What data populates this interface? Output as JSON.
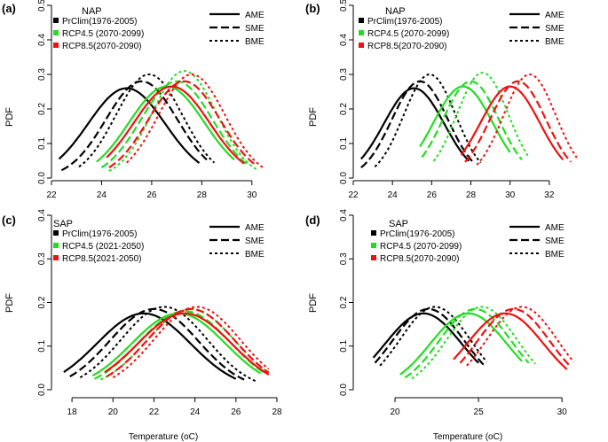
{
  "figure": {
    "xlabel": "Temperature (oC)",
    "ylabel": "PDF"
  },
  "legend_models": [
    {
      "label": "AME",
      "dash": "solid"
    },
    {
      "label": "SME",
      "dash": "longdash"
    },
    {
      "label": "BME",
      "dash": "dotted"
    }
  ],
  "colors": {
    "PrClim": "#000000",
    "RCP4.5": "#22dd22",
    "RCP8.5": "#ee1111"
  },
  "chart_data": [
    {
      "panel": "(a)",
      "region": "NAP",
      "type": "line",
      "xlim": [
        22,
        31
      ],
      "ylim": [
        0,
        0.5
      ],
      "xticks": [
        22,
        24,
        26,
        28,
        30
      ],
      "yticks": [
        0.0,
        0.1,
        0.2,
        0.3,
        0.4,
        0.5
      ],
      "legend_series": [
        "PrClim(1976-2005)",
        "RCP4.5 (2070-2099)",
        "RCP8.5(2070-2090)"
      ],
      "series": [
        {
          "group": "PrClim",
          "model": "AME",
          "mean": 25.0,
          "peak": 0.26,
          "xrange": [
            22.3,
            27.9
          ]
        },
        {
          "group": "PrClim",
          "model": "SME",
          "mean": 25.6,
          "peak": 0.28,
          "xrange": [
            22.4,
            28.2
          ]
        },
        {
          "group": "PrClim",
          "model": "BME",
          "mean": 25.9,
          "peak": 0.3,
          "xrange": [
            23.1,
            28.5
          ]
        },
        {
          "group": "RCP4.5",
          "model": "AME",
          "mean": 26.6,
          "peak": 0.265,
          "xrange": [
            23.8,
            29.3
          ]
        },
        {
          "group": "RCP4.5",
          "model": "SME",
          "mean": 27.0,
          "peak": 0.28,
          "xrange": [
            24.0,
            29.9
          ]
        },
        {
          "group": "RCP4.5",
          "model": "BME",
          "mean": 27.3,
          "peak": 0.31,
          "xrange": [
            24.3,
            30.2
          ]
        },
        {
          "group": "RCP8.5",
          "model": "AME",
          "mean": 26.8,
          "peak": 0.265,
          "xrange": [
            24.2,
            29.7
          ]
        },
        {
          "group": "RCP8.5",
          "model": "SME",
          "mean": 27.3,
          "peak": 0.28,
          "xrange": [
            24.3,
            30.1
          ]
        },
        {
          "group": "RCP8.5",
          "model": "BME",
          "mean": 27.6,
          "peak": 0.3,
          "xrange": [
            25.0,
            30.5
          ]
        }
      ]
    },
    {
      "panel": "(b)",
      "region": "NAP",
      "type": "line",
      "xlim": [
        22,
        33.5
      ],
      "ylim": [
        0,
        0.5
      ],
      "xticks": [
        22,
        24,
        26,
        28,
        30,
        32
      ],
      "yticks": [
        0.0,
        0.1,
        0.2,
        0.3,
        0.4,
        0.5
      ],
      "legend_series": [
        "PrClim(1976-2005)",
        "RCP4.5 (2070-2099)",
        "RCP8.5(2070-2090)"
      ],
      "series": [
        {
          "group": "PrClim",
          "model": "AME",
          "mean": 25.1,
          "peak": 0.26,
          "xrange": [
            22.4,
            27.9
          ]
        },
        {
          "group": "PrClim",
          "model": "SME",
          "mean": 25.4,
          "peak": 0.28,
          "xrange": [
            22.4,
            28.1
          ]
        },
        {
          "group": "PrClim",
          "model": "BME",
          "mean": 25.9,
          "peak": 0.3,
          "xrange": [
            23.1,
            28.5
          ]
        },
        {
          "group": "RCP4.5",
          "model": "AME",
          "mean": 27.6,
          "peak": 0.265,
          "xrange": [
            25.4,
            30.0
          ]
        },
        {
          "group": "RCP4.5",
          "model": "SME",
          "mean": 28.0,
          "peak": 0.28,
          "xrange": [
            25.5,
            30.6
          ]
        },
        {
          "group": "RCP4.5",
          "model": "BME",
          "mean": 28.6,
          "peak": 0.305,
          "xrange": [
            26.1,
            30.9
          ]
        },
        {
          "group": "RCP8.5",
          "model": "AME",
          "mean": 30.0,
          "peak": 0.265,
          "xrange": [
            27.5,
            32.7
          ]
        },
        {
          "group": "RCP8.5",
          "model": "SME",
          "mean": 30.4,
          "peak": 0.28,
          "xrange": [
            27.7,
            33.1
          ]
        },
        {
          "group": "RCP8.5",
          "model": "BME",
          "mean": 31.0,
          "peak": 0.3,
          "xrange": [
            28.3,
            33.4
          ]
        }
      ]
    },
    {
      "panel": "(c)",
      "region": "SAP",
      "type": "line",
      "xlim": [
        17,
        28
      ],
      "ylim": [
        0,
        0.4
      ],
      "xticks": [
        18,
        20,
        22,
        24,
        26,
        28
      ],
      "yticks": [
        0.0,
        0.1,
        0.2,
        0.3,
        0.4
      ],
      "legend_series": [
        "PrClim(1976-2005)",
        "RCP4.5 (2021-2050)",
        "RCP8.5(2021-2050)"
      ],
      "series": [
        {
          "group": "PrClim",
          "model": "AME",
          "mean": 21.5,
          "peak": 0.175,
          "xrange": [
            17.6,
            26.0
          ]
        },
        {
          "group": "PrClim",
          "model": "SME",
          "mean": 22.0,
          "peak": 0.185,
          "xrange": [
            17.9,
            26.4
          ]
        },
        {
          "group": "PrClim",
          "model": "BME",
          "mean": 22.5,
          "peak": 0.19,
          "xrange": [
            18.4,
            27.0
          ]
        },
        {
          "group": "RCP4.5",
          "model": "AME",
          "mean": 23.2,
          "peak": 0.175,
          "xrange": [
            19.0,
            27.2
          ]
        },
        {
          "group": "RCP4.5",
          "model": "SME",
          "mean": 23.5,
          "peak": 0.18,
          "xrange": [
            19.1,
            27.4
          ]
        },
        {
          "group": "RCP4.5",
          "model": "BME",
          "mean": 23.8,
          "peak": 0.185,
          "xrange": [
            19.4,
            27.6
          ]
        },
        {
          "group": "RCP8.5",
          "model": "AME",
          "mean": 23.5,
          "peak": 0.175,
          "xrange": [
            19.6,
            27.6
          ]
        },
        {
          "group": "RCP8.5",
          "model": "SME",
          "mean": 23.8,
          "peak": 0.185,
          "xrange": [
            19.7,
            27.6
          ]
        },
        {
          "group": "RCP8.5",
          "model": "BME",
          "mean": 24.1,
          "peak": 0.19,
          "xrange": [
            20.0,
            27.6
          ]
        }
      ]
    },
    {
      "panel": "(d)",
      "region": "SAP",
      "type": "line",
      "xlim": [
        17.5,
        31
      ],
      "ylim": [
        0,
        0.4
      ],
      "xticks": [
        20,
        25,
        30
      ],
      "yticks": [
        0.0,
        0.1,
        0.2,
        0.3,
        0.4
      ],
      "legend_series": [
        "PrClim(1976-2005)",
        "RCP4.5 (2070-2099)",
        "RCP8.5(2070-2090)"
      ],
      "series": [
        {
          "group": "PrClim",
          "model": "AME",
          "mean": 21.7,
          "peak": 0.175,
          "xrange": [
            18.7,
            25.0
          ]
        },
        {
          "group": "PrClim",
          "model": "SME",
          "mean": 22.0,
          "peak": 0.185,
          "xrange": [
            18.8,
            25.3
          ]
        },
        {
          "group": "PrClim",
          "model": "BME",
          "mean": 22.4,
          "peak": 0.19,
          "xrange": [
            19.1,
            25.5
          ]
        },
        {
          "group": "RCP4.5",
          "model": "AME",
          "mean": 24.4,
          "peak": 0.175,
          "xrange": [
            20.3,
            27.6
          ]
        },
        {
          "group": "RCP4.5",
          "model": "SME",
          "mean": 24.8,
          "peak": 0.185,
          "xrange": [
            20.6,
            28.0
          ]
        },
        {
          "group": "RCP4.5",
          "model": "BME",
          "mean": 25.2,
          "peak": 0.19,
          "xrange": [
            21.0,
            28.4
          ]
        },
        {
          "group": "RCP8.5",
          "model": "AME",
          "mean": 26.6,
          "peak": 0.175,
          "xrange": [
            23.5,
            30.3
          ]
        },
        {
          "group": "RCP8.5",
          "model": "SME",
          "mean": 27.1,
          "peak": 0.185,
          "xrange": [
            23.9,
            30.5
          ]
        },
        {
          "group": "RCP8.5",
          "model": "BME",
          "mean": 27.6,
          "peak": 0.19,
          "xrange": [
            24.3,
            30.7
          ]
        }
      ]
    }
  ]
}
